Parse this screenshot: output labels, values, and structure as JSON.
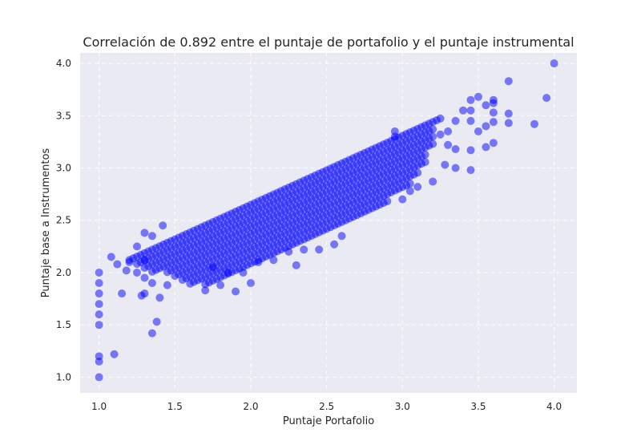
{
  "chart_data": {
    "type": "scatter",
    "title": "Correlación  de 0.892 entre el puntaje de portafolio y el puntaje instrumental",
    "xlabel": "Puntaje Portafolio",
    "ylabel": "Puntaje base a Instrumentos",
    "xlim": [
      0.875,
      4.15
    ],
    "ylim": [
      0.85,
      4.1
    ],
    "xticks": [
      "1.0",
      "1.5",
      "2.0",
      "2.5",
      "3.0",
      "3.5",
      "4.0"
    ],
    "yticks": [
      "1.0",
      "1.5",
      "2.0",
      "2.5",
      "3.0",
      "3.5",
      "4.0"
    ],
    "grid": true,
    "background_color": "#eaeaf2",
    "point_color": "#0000ff",
    "point_alpha": 0.5,
    "bands": [
      {
        "x_start": 1.2,
        "x_end": 3.25,
        "y_intercept": 2.12,
        "slope": 0.66
      },
      {
        "x_start": 1.25,
        "x_end": 3.2,
        "y_intercept": 2.05,
        "slope": 0.66
      },
      {
        "x_start": 1.3,
        "x_end": 3.2,
        "y_intercept": 1.98,
        "slope": 0.66
      },
      {
        "x_start": 1.35,
        "x_end": 3.2,
        "y_intercept": 1.91,
        "slope": 0.66
      },
      {
        "x_start": 1.45,
        "x_end": 3.15,
        "y_intercept": 1.84,
        "slope": 0.66
      },
      {
        "x_start": 1.5,
        "x_end": 3.15,
        "y_intercept": 1.77,
        "slope": 0.66
      },
      {
        "x_start": 1.55,
        "x_end": 3.1,
        "y_intercept": 1.7,
        "slope": 0.66
      },
      {
        "x_start": 1.6,
        "x_end": 3.05,
        "y_intercept": 1.63,
        "slope": 0.66
      },
      {
        "x_start": 1.7,
        "x_end": 2.9,
        "y_intercept": 1.56,
        "slope": 0.66
      }
    ],
    "points": [
      [
        1.0,
        1.0
      ],
      [
        1.0,
        1.15
      ],
      [
        1.0,
        1.2
      ],
      [
        1.0,
        1.5
      ],
      [
        1.0,
        1.6
      ],
      [
        1.0,
        1.7
      ],
      [
        1.0,
        1.8
      ],
      [
        1.0,
        1.9
      ],
      [
        1.0,
        2.0
      ],
      [
        1.1,
        1.22
      ],
      [
        1.35,
        1.42
      ],
      [
        1.38,
        1.53
      ],
      [
        1.15,
        1.8
      ],
      [
        1.28,
        1.78
      ],
      [
        1.3,
        1.8
      ],
      [
        1.4,
        1.76
      ],
      [
        1.3,
        1.95
      ],
      [
        1.35,
        1.9
      ],
      [
        1.45,
        1.88
      ],
      [
        1.25,
        2.0
      ],
      [
        1.3,
        2.12
      ],
      [
        1.2,
        2.1
      ],
      [
        1.35,
        2.35
      ],
      [
        1.3,
        2.38
      ],
      [
        1.42,
        2.45
      ],
      [
        1.08,
        2.15
      ],
      [
        1.12,
        2.08
      ],
      [
        1.18,
        2.02
      ],
      [
        1.25,
        2.25
      ],
      [
        1.7,
        1.83
      ],
      [
        1.8,
        1.88
      ],
      [
        1.9,
        1.82
      ],
      [
        2.0,
        1.9
      ],
      [
        1.75,
        2.05
      ],
      [
        1.85,
        2.0
      ],
      [
        1.95,
        2.0
      ],
      [
        2.05,
        2.1
      ],
      [
        2.15,
        2.12
      ],
      [
        2.25,
        2.2
      ],
      [
        2.3,
        2.07
      ],
      [
        2.35,
        2.22
      ],
      [
        2.45,
        2.22
      ],
      [
        2.55,
        2.27
      ],
      [
        2.6,
        2.35
      ],
      [
        3.0,
        2.7
      ],
      [
        3.05,
        2.78
      ],
      [
        3.1,
        2.82
      ],
      [
        3.2,
        2.87
      ],
      [
        3.28,
        3.03
      ],
      [
        3.35,
        3.0
      ],
      [
        3.45,
        2.98
      ],
      [
        3.35,
        3.18
      ],
      [
        3.45,
        3.17
      ],
      [
        3.55,
        3.2
      ],
      [
        3.6,
        3.24
      ],
      [
        3.7,
        3.43
      ],
      [
        3.7,
        3.52
      ],
      [
        3.7,
        3.83
      ],
      [
        3.87,
        3.42
      ],
      [
        3.95,
        3.67
      ],
      [
        4.0,
        4.0
      ],
      [
        3.5,
        3.35
      ],
      [
        3.55,
        3.4
      ],
      [
        3.6,
        3.44
      ],
      [
        3.45,
        3.45
      ],
      [
        3.55,
        3.6
      ],
      [
        3.6,
        3.62
      ],
      [
        3.45,
        3.65
      ],
      [
        3.5,
        3.68
      ],
      [
        3.6,
        3.65
      ],
      [
        3.4,
        3.55
      ],
      [
        3.45,
        3.55
      ],
      [
        3.35,
        3.45
      ],
      [
        3.3,
        3.35
      ],
      [
        3.25,
        3.32
      ],
      [
        3.6,
        3.53
      ],
      [
        3.3,
        3.22
      ],
      [
        2.95,
        3.3
      ],
      [
        2.95,
        3.35
      ]
    ]
  }
}
